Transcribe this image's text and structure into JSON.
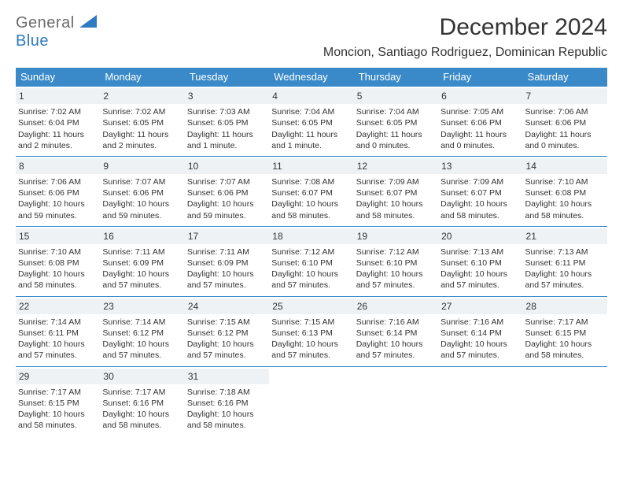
{
  "logo": {
    "general": "General",
    "blue": "Blue"
  },
  "title": "December 2024",
  "location": "Moncion, Santiago Rodriguez, Dominican Republic",
  "colors": {
    "header_bg": "#3a8ac9",
    "header_text": "#ffffff",
    "daynum_bg": "#eef2f5",
    "border": "#3a8ac9",
    "logo_gray": "#6b6b6b",
    "logo_blue": "#2d7bc0"
  },
  "weekdays": [
    "Sunday",
    "Monday",
    "Tuesday",
    "Wednesday",
    "Thursday",
    "Friday",
    "Saturday"
  ],
  "days": [
    {
      "n": "1",
      "sunrise": "Sunrise: 7:02 AM",
      "sunset": "Sunset: 6:04 PM",
      "daylight": "Daylight: 11 hours and 2 minutes."
    },
    {
      "n": "2",
      "sunrise": "Sunrise: 7:02 AM",
      "sunset": "Sunset: 6:05 PM",
      "daylight": "Daylight: 11 hours and 2 minutes."
    },
    {
      "n": "3",
      "sunrise": "Sunrise: 7:03 AM",
      "sunset": "Sunset: 6:05 PM",
      "daylight": "Daylight: 11 hours and 1 minute."
    },
    {
      "n": "4",
      "sunrise": "Sunrise: 7:04 AM",
      "sunset": "Sunset: 6:05 PM",
      "daylight": "Daylight: 11 hours and 1 minute."
    },
    {
      "n": "5",
      "sunrise": "Sunrise: 7:04 AM",
      "sunset": "Sunset: 6:05 PM",
      "daylight": "Daylight: 11 hours and 0 minutes."
    },
    {
      "n": "6",
      "sunrise": "Sunrise: 7:05 AM",
      "sunset": "Sunset: 6:06 PM",
      "daylight": "Daylight: 11 hours and 0 minutes."
    },
    {
      "n": "7",
      "sunrise": "Sunrise: 7:06 AM",
      "sunset": "Sunset: 6:06 PM",
      "daylight": "Daylight: 11 hours and 0 minutes."
    },
    {
      "n": "8",
      "sunrise": "Sunrise: 7:06 AM",
      "sunset": "Sunset: 6:06 PM",
      "daylight": "Daylight: 10 hours and 59 minutes."
    },
    {
      "n": "9",
      "sunrise": "Sunrise: 7:07 AM",
      "sunset": "Sunset: 6:06 PM",
      "daylight": "Daylight: 10 hours and 59 minutes."
    },
    {
      "n": "10",
      "sunrise": "Sunrise: 7:07 AM",
      "sunset": "Sunset: 6:06 PM",
      "daylight": "Daylight: 10 hours and 59 minutes."
    },
    {
      "n": "11",
      "sunrise": "Sunrise: 7:08 AM",
      "sunset": "Sunset: 6:07 PM",
      "daylight": "Daylight: 10 hours and 58 minutes."
    },
    {
      "n": "12",
      "sunrise": "Sunrise: 7:09 AM",
      "sunset": "Sunset: 6:07 PM",
      "daylight": "Daylight: 10 hours and 58 minutes."
    },
    {
      "n": "13",
      "sunrise": "Sunrise: 7:09 AM",
      "sunset": "Sunset: 6:07 PM",
      "daylight": "Daylight: 10 hours and 58 minutes."
    },
    {
      "n": "14",
      "sunrise": "Sunrise: 7:10 AM",
      "sunset": "Sunset: 6:08 PM",
      "daylight": "Daylight: 10 hours and 58 minutes."
    },
    {
      "n": "15",
      "sunrise": "Sunrise: 7:10 AM",
      "sunset": "Sunset: 6:08 PM",
      "daylight": "Daylight: 10 hours and 58 minutes."
    },
    {
      "n": "16",
      "sunrise": "Sunrise: 7:11 AM",
      "sunset": "Sunset: 6:09 PM",
      "daylight": "Daylight: 10 hours and 57 minutes."
    },
    {
      "n": "17",
      "sunrise": "Sunrise: 7:11 AM",
      "sunset": "Sunset: 6:09 PM",
      "daylight": "Daylight: 10 hours and 57 minutes."
    },
    {
      "n": "18",
      "sunrise": "Sunrise: 7:12 AM",
      "sunset": "Sunset: 6:10 PM",
      "daylight": "Daylight: 10 hours and 57 minutes."
    },
    {
      "n": "19",
      "sunrise": "Sunrise: 7:12 AM",
      "sunset": "Sunset: 6:10 PM",
      "daylight": "Daylight: 10 hours and 57 minutes."
    },
    {
      "n": "20",
      "sunrise": "Sunrise: 7:13 AM",
      "sunset": "Sunset: 6:10 PM",
      "daylight": "Daylight: 10 hours and 57 minutes."
    },
    {
      "n": "21",
      "sunrise": "Sunrise: 7:13 AM",
      "sunset": "Sunset: 6:11 PM",
      "daylight": "Daylight: 10 hours and 57 minutes."
    },
    {
      "n": "22",
      "sunrise": "Sunrise: 7:14 AM",
      "sunset": "Sunset: 6:11 PM",
      "daylight": "Daylight: 10 hours and 57 minutes."
    },
    {
      "n": "23",
      "sunrise": "Sunrise: 7:14 AM",
      "sunset": "Sunset: 6:12 PM",
      "daylight": "Daylight: 10 hours and 57 minutes."
    },
    {
      "n": "24",
      "sunrise": "Sunrise: 7:15 AM",
      "sunset": "Sunset: 6:12 PM",
      "daylight": "Daylight: 10 hours and 57 minutes."
    },
    {
      "n": "25",
      "sunrise": "Sunrise: 7:15 AM",
      "sunset": "Sunset: 6:13 PM",
      "daylight": "Daylight: 10 hours and 57 minutes."
    },
    {
      "n": "26",
      "sunrise": "Sunrise: 7:16 AM",
      "sunset": "Sunset: 6:14 PM",
      "daylight": "Daylight: 10 hours and 57 minutes."
    },
    {
      "n": "27",
      "sunrise": "Sunrise: 7:16 AM",
      "sunset": "Sunset: 6:14 PM",
      "daylight": "Daylight: 10 hours and 57 minutes."
    },
    {
      "n": "28",
      "sunrise": "Sunrise: 7:17 AM",
      "sunset": "Sunset: 6:15 PM",
      "daylight": "Daylight: 10 hours and 58 minutes."
    },
    {
      "n": "29",
      "sunrise": "Sunrise: 7:17 AM",
      "sunset": "Sunset: 6:15 PM",
      "daylight": "Daylight: 10 hours and 58 minutes."
    },
    {
      "n": "30",
      "sunrise": "Sunrise: 7:17 AM",
      "sunset": "Sunset: 6:16 PM",
      "daylight": "Daylight: 10 hours and 58 minutes."
    },
    {
      "n": "31",
      "sunrise": "Sunrise: 7:18 AM",
      "sunset": "Sunset: 6:16 PM",
      "daylight": "Daylight: 10 hours and 58 minutes."
    }
  ]
}
